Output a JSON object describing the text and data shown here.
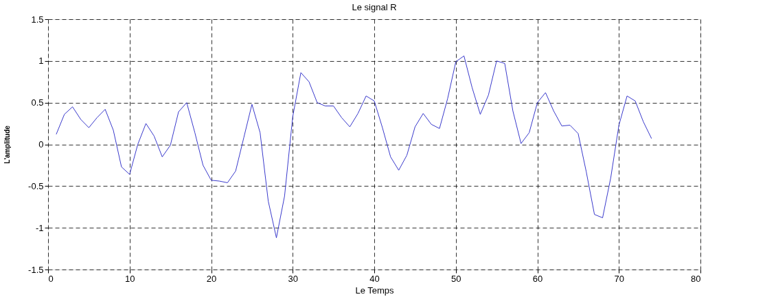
{
  "chart_data": {
    "type": "line",
    "title": "Le signal R",
    "xlabel": "Le Temps",
    "ylabel": "L'amplitude",
    "x": [
      1,
      2,
      3,
      4,
      5,
      6,
      7,
      8,
      9,
      10,
      11,
      12,
      13,
      14,
      15,
      16,
      17,
      18,
      19,
      20,
      21,
      22,
      23,
      24,
      25,
      26,
      27,
      28,
      29,
      30,
      31,
      32,
      33,
      34,
      35,
      36,
      37,
      38,
      39,
      40,
      41,
      42,
      43,
      44,
      45,
      46,
      47,
      48,
      49,
      50,
      51,
      52,
      53,
      54,
      55,
      56,
      57,
      58,
      59,
      60,
      61,
      62,
      63,
      64,
      65,
      66,
      67,
      68,
      69,
      70,
      71,
      72,
      73,
      74
    ],
    "series": [
      {
        "color": "#3a3acc",
        "values": [
          0.12,
          0.36,
          0.45,
          0.3,
          0.2,
          0.32,
          0.42,
          0.17,
          -0.27,
          -0.36,
          0.0,
          0.25,
          0.1,
          -0.15,
          -0.01,
          0.39,
          0.5,
          0.14,
          -0.25,
          -0.43,
          -0.44,
          -0.46,
          -0.32,
          0.08,
          0.48,
          0.14,
          -0.68,
          -1.12,
          -0.62,
          0.33,
          0.86,
          0.75,
          0.5,
          0.46,
          0.46,
          0.32,
          0.21,
          0.37,
          0.58,
          0.52,
          0.2,
          -0.15,
          -0.31,
          -0.13,
          0.21,
          0.37,
          0.24,
          0.19,
          0.55,
          0.99,
          1.06,
          0.68,
          0.36,
          0.59,
          1.0,
          0.97,
          0.4,
          0.01,
          0.14,
          0.5,
          0.62,
          0.4,
          0.22,
          0.23,
          0.13,
          -0.33,
          -0.84,
          -0.88,
          -0.4,
          0.23,
          0.58,
          0.52,
          0.27,
          0.07
        ]
      }
    ],
    "xlim": [
      0,
      80
    ],
    "xticks": [
      0,
      10,
      20,
      30,
      40,
      50,
      60,
      70,
      80
    ],
    "ylim": [
      -1.5,
      1.5
    ],
    "yticks": [
      -1.5,
      -1,
      -0.5,
      0,
      0.5,
      1,
      1.5
    ],
    "grid": true,
    "line_style": "solid",
    "marker": "none"
  }
}
